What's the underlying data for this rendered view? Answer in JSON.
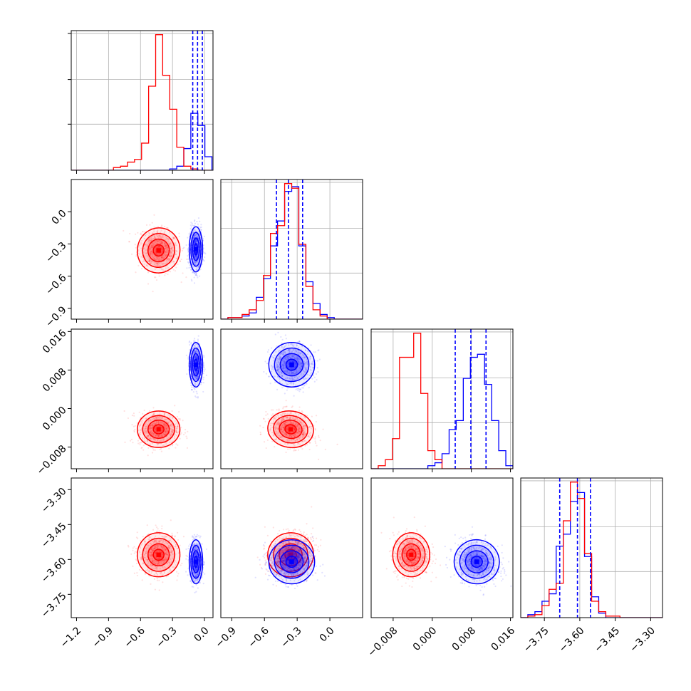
{
  "chart_data": {
    "type": "corner",
    "grid": true,
    "colors": {
      "series_a": "#ff0000",
      "series_b": "#0000ff",
      "grid": "#b0b0b0",
      "axes": "#000000"
    },
    "series": [
      {
        "color": "red",
        "hist_step": true,
        "contours_filled": true,
        "scatter_points": true
      },
      {
        "color": "blue",
        "hist_step": true,
        "contours_filled": true,
        "scatter_points": true,
        "quantile_lines": "dashed"
      }
    ],
    "parameters": [
      {
        "range": [
          -1.25,
          0.08
        ],
        "ticks": [
          -1.2,
          -0.9,
          -0.6,
          -0.3,
          0.0
        ],
        "tick_labels": [
          "−1.2",
          "−0.9",
          "−0.6",
          "−0.3",
          "0.0"
        ]
      },
      {
        "range": [
          -1.0,
          0.3
        ],
        "ticks": [
          -0.9,
          -0.6,
          -0.3,
          0.0
        ],
        "tick_labels": [
          "−0.9",
          "−0.6",
          "−0.3",
          "0.0"
        ]
      },
      {
        "range": [
          -0.0125,
          0.0165
        ],
        "ticks": [
          -0.008,
          0.0,
          0.008,
          0.016
        ],
        "tick_labels": [
          "−0.008",
          "0.000",
          "0.008",
          "0.016"
        ]
      },
      {
        "range": [
          -3.85,
          -3.25
        ],
        "ticks": [
          -3.75,
          -3.6,
          -3.45,
          -3.3
        ],
        "tick_labels": [
          "−3.75",
          "−3.60",
          "−3.45",
          "−3.30"
        ]
      }
    ],
    "diagonal": [
      {
        "param": 0,
        "bins": [
          -1.25,
          -1.184,
          -1.118,
          -1.052,
          -0.986,
          -0.92,
          -0.854,
          -0.788,
          -0.722,
          -0.656,
          -0.59,
          -0.524,
          -0.458,
          -0.392,
          -0.326,
          -0.26,
          -0.194,
          -0.128,
          -0.062,
          0.004,
          0.07
        ],
        "series_a_counts": [
          0,
          0,
          0,
          0,
          0,
          0,
          2,
          3,
          6,
          8,
          20,
          62,
          100,
          70,
          45,
          17,
          3,
          1,
          0,
          0
        ],
        "series_b_counts": [
          0,
          0,
          0,
          0,
          0,
          0,
          0,
          0,
          0,
          0,
          0,
          0,
          0,
          0,
          1,
          3,
          16,
          42,
          33,
          10
        ],
        "quantiles_b": [
          -0.11,
          -0.065,
          -0.02
        ]
      },
      {
        "param": 1,
        "bins": [
          -1.0,
          -0.935,
          -0.87,
          -0.805,
          -0.74,
          -0.675,
          -0.61,
          -0.545,
          -0.48,
          -0.415,
          -0.35,
          -0.285,
          -0.22,
          -0.155,
          -0.09,
          -0.025,
          0.04,
          0.105,
          0.17,
          0.235,
          0.3
        ],
        "series_a_counts": [
          0,
          1,
          1,
          3,
          6,
          12,
          28,
          55,
          60,
          87,
          84,
          48,
          21,
          6,
          2,
          0,
          0,
          0,
          0,
          0
        ],
        "series_b_counts": [
          0,
          1,
          1,
          2,
          4,
          14,
          26,
          47,
          63,
          82,
          85,
          47,
          24,
          10,
          3,
          1,
          0,
          0,
          0,
          0
        ],
        "quantiles_b": [
          -0.49,
          -0.38,
          -0.25
        ]
      },
      {
        "param": 2,
        "bins": [
          -0.0125,
          -0.01105,
          -0.0096,
          -0.00815,
          -0.0067,
          -0.00525,
          -0.0038,
          -0.00235,
          -0.0009,
          0.00055,
          0.002,
          0.00345,
          0.0049,
          0.00635,
          0.0078,
          0.00925,
          0.0107,
          0.01215,
          0.0136,
          0.01505,
          0.0165
        ],
        "series_a_counts": [
          0,
          1,
          3,
          10,
          37,
          37,
          45,
          25,
          6,
          3,
          0,
          0,
          0,
          0,
          0,
          0,
          0,
          0,
          0,
          0
        ],
        "series_b_counts": [
          0,
          0,
          0,
          0,
          0,
          0,
          0,
          0,
          1,
          2,
          5,
          13,
          16,
          30,
          37,
          38,
          28,
          16,
          6,
          1
        ],
        "quantiles_b": [
          0.0047,
          0.0079,
          0.011
        ]
      },
      {
        "param": 3,
        "bins": [
          -3.85,
          -3.82,
          -3.79,
          -3.76,
          -3.73,
          -3.7,
          -3.67,
          -3.64,
          -3.61,
          -3.58,
          -3.55,
          -3.52,
          -3.49,
          -3.46,
          -3.43,
          -3.4,
          -3.37,
          -3.34,
          -3.31,
          -3.28,
          -3.25
        ],
        "series_a_counts": [
          0,
          1,
          2,
          8,
          19,
          23,
          65,
          91,
          80,
          43,
          11,
          4,
          1,
          1,
          0,
          0,
          0,
          0,
          0,
          0
        ],
        "series_b_counts": [
          0,
          2,
          4,
          11,
          16,
          48,
          56,
          78,
          84,
          41,
          14,
          3,
          0,
          0,
          0,
          0,
          0,
          0,
          0,
          0
        ],
        "quantiles_b": [
          -3.685,
          -3.61,
          -3.555
        ]
      }
    ],
    "blobs": {
      "series_a": {
        "means": [
          -0.43,
          -0.36,
          -0.0043,
          -3.58
        ],
        "sds": [
          0.095,
          0.1,
          0.0018,
          0.045
        ]
      },
      "series_b": {
        "means": [
          -0.08,
          -0.35,
          0.0091,
          -3.61
        ],
        "sds": [
          0.03,
          0.1,
          0.0022,
          0.045
        ]
      }
    },
    "correlations": {
      "series_a": {
        "0-1": -0.2,
        "0-2": 0.0,
        "0-3": 0.0,
        "1-2": -0.2,
        "1-3": 0.2,
        "2-3": 0.0
      },
      "series_b": {
        "0-1": 0.0,
        "0-2": 0.0,
        "0-3": 0.0,
        "1-2": 0.0,
        "1-3": 0.0,
        "2-3": -0.2
      }
    }
  }
}
